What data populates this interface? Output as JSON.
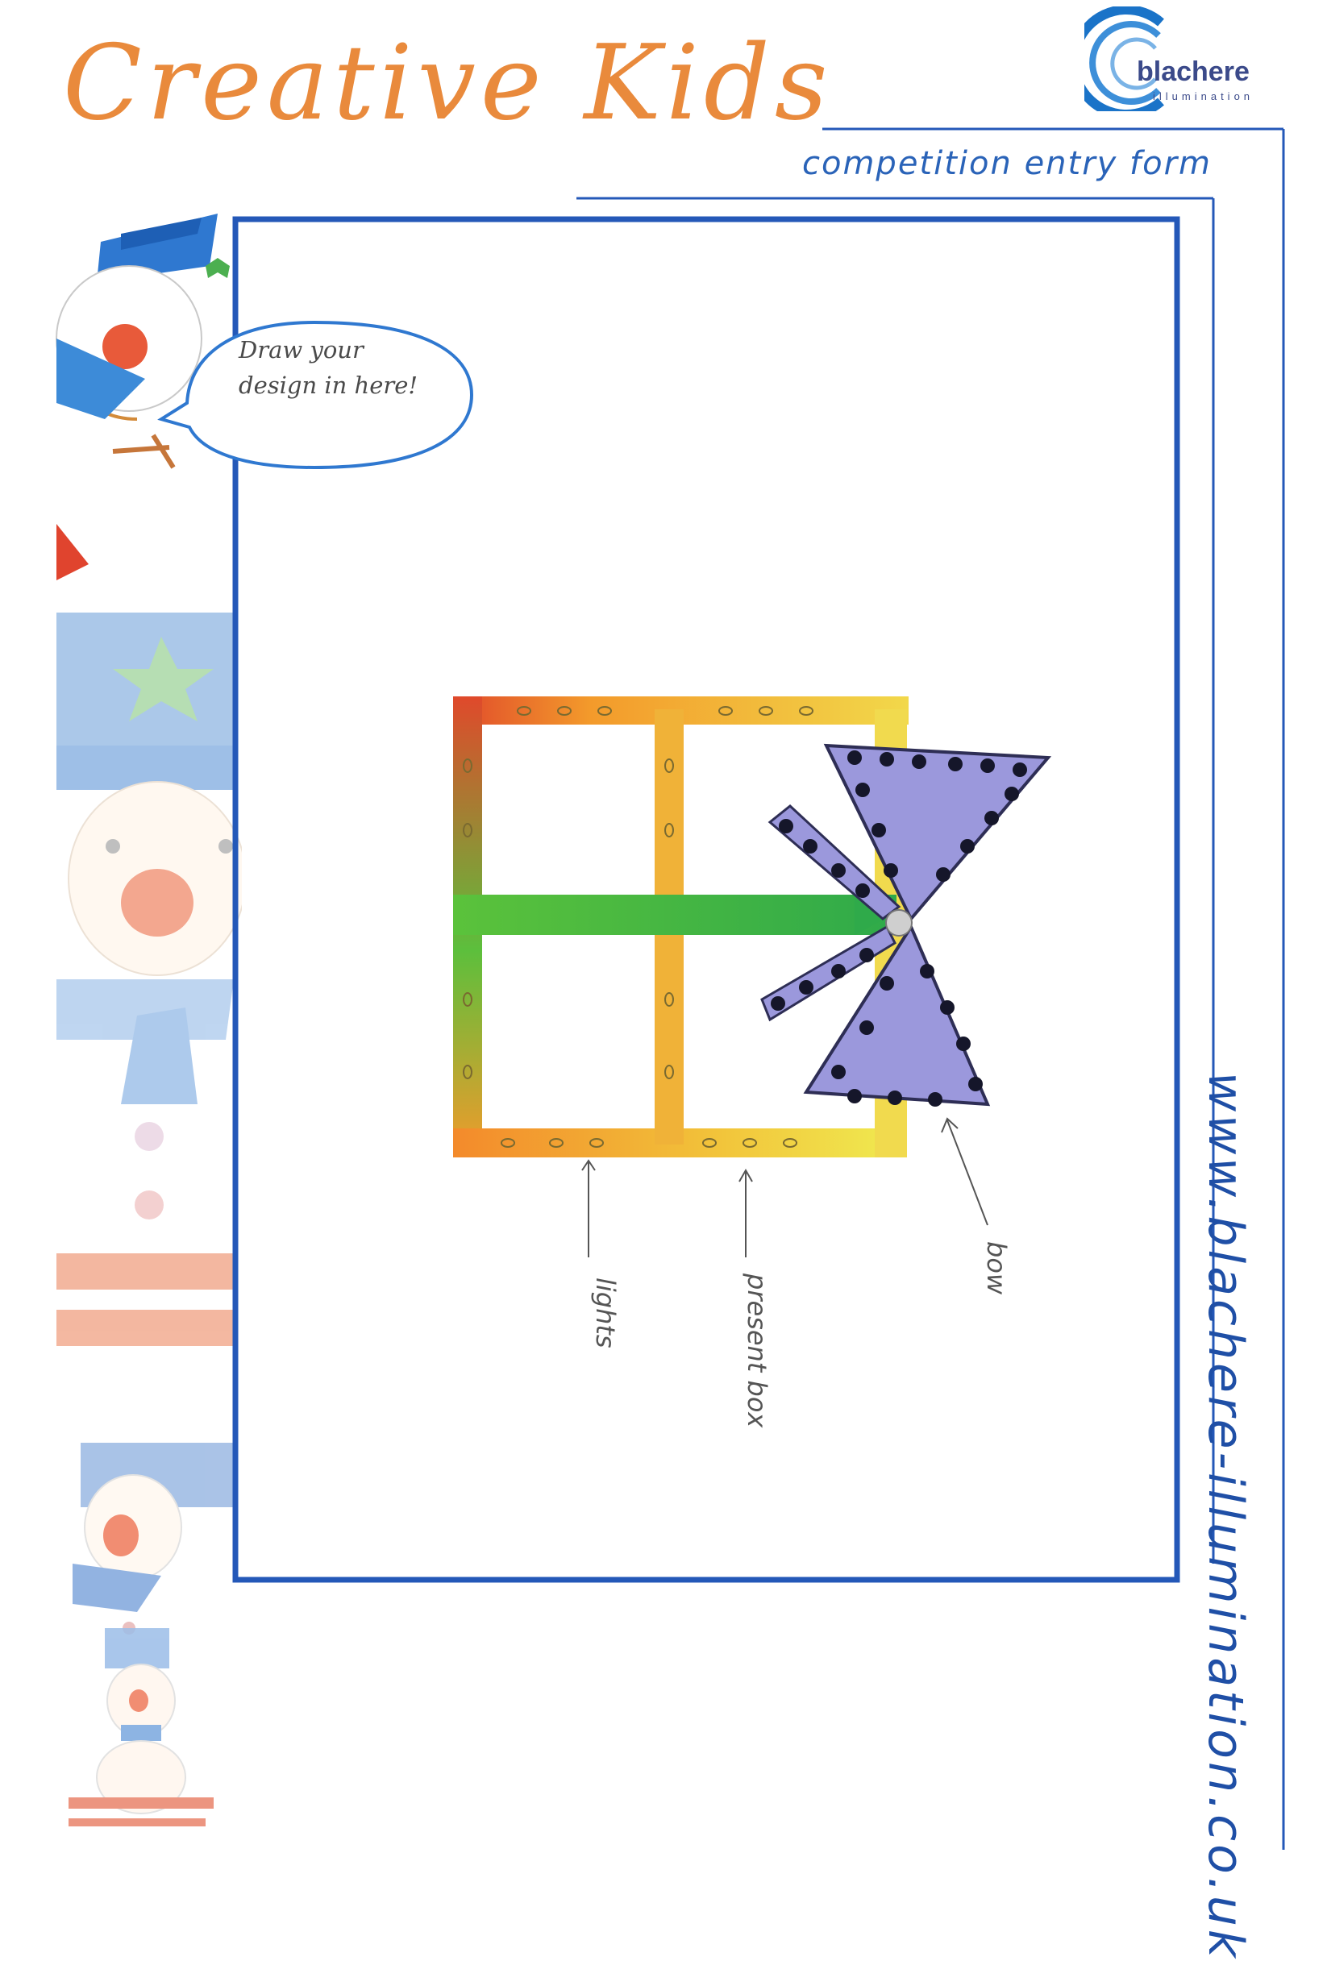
{
  "header": {
    "title": "Creative Kids",
    "subtitle": "competition entry form"
  },
  "logo": {
    "name": "blachere",
    "tagline": "illumination"
  },
  "speech_bubble": {
    "line1": "Draw your",
    "line2": "design in here!"
  },
  "sidebar_url": "www.blachere-illumination.co.uk",
  "drawing": {
    "annotations": {
      "lights": "lights",
      "present_box": "present box",
      "bow": "bow"
    }
  },
  "colors": {
    "title_orange": "#e98a3c",
    "frame_blue": "#2458b8",
    "bow_purple": "#8f8ddb"
  }
}
